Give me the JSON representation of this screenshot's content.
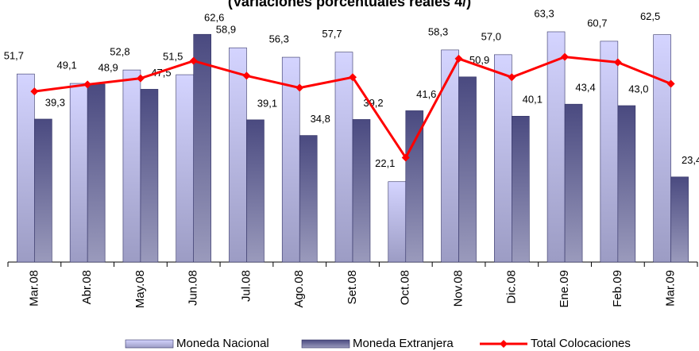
{
  "chart_data": {
    "type": "bar-line",
    "title": "(Variaciones porcentuales reales 4/)",
    "categories": [
      "Mar.08",
      "Abr.08",
      "May.08",
      "Jun.08",
      "Jul.08",
      "Ago.08",
      "Set.08",
      "Oct.08",
      "Nov.08",
      "Dic.08",
      "Ene.09",
      "Feb.09",
      "Mar.09"
    ],
    "series": [
      {
        "name": "Moneda Nacional",
        "type": "bar",
        "color": "#ccccff",
        "values": [
          51.7,
          49.1,
          52.8,
          51.5,
          58.9,
          56.3,
          57.7,
          22.1,
          58.3,
          57.0,
          63.3,
          60.7,
          62.5
        ],
        "value_labels": [
          "51,7",
          "49,1",
          "52,8",
          "51,5",
          "58,9",
          "56,3",
          "57,7",
          "22,1",
          "58,3",
          "57,0",
          "63,3",
          "60,7",
          "62,5"
        ]
      },
      {
        "name": "Moneda Extranjera",
        "type": "bar",
        "color": "#4a4a80",
        "values": [
          39.3,
          48.9,
          47.5,
          62.6,
          39.1,
          34.8,
          39.2,
          41.6,
          50.9,
          40.1,
          43.4,
          43.0,
          23.4
        ],
        "value_labels": [
          "39,3",
          "48,9",
          "47,5",
          "62,6",
          "39,1",
          "34,8",
          "39,2",
          "41,6",
          "50,9",
          "40,1",
          "43,4",
          "43,0",
          "23,4"
        ]
      },
      {
        "name": "Total Colocaciones",
        "type": "line",
        "color": "#ff0000",
        "values": [
          46.9,
          48.8,
          50.5,
          55.3,
          51.2,
          47.9,
          50.8,
          28.7,
          55.9,
          50.8,
          56.4,
          54.9,
          49.0
        ]
      }
    ]
  }
}
